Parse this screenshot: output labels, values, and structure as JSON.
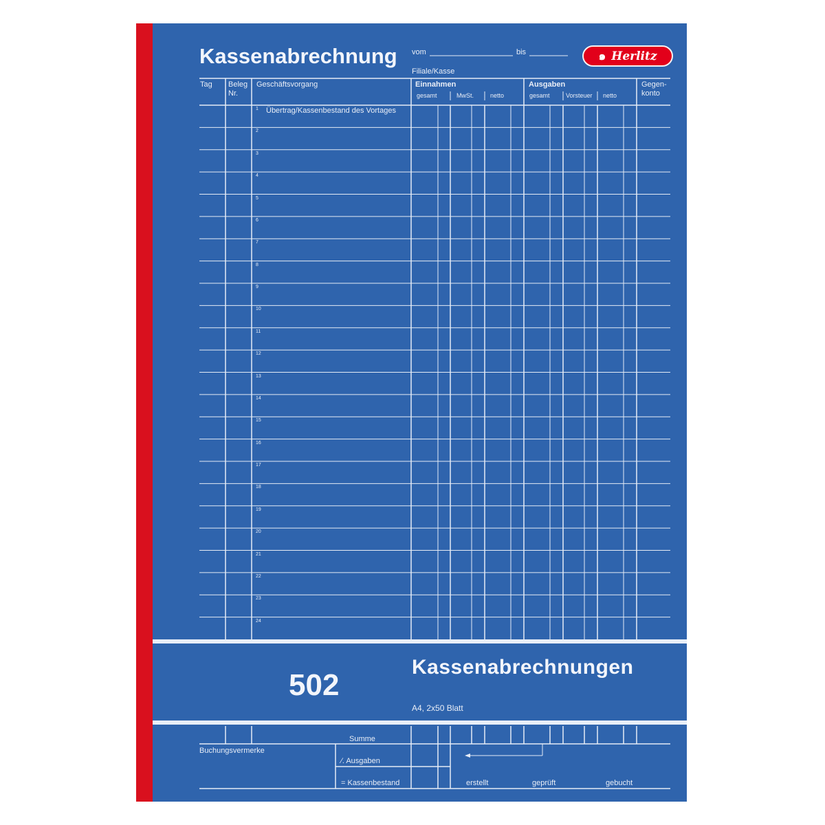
{
  "header": {
    "title": "Kassenabrechnung",
    "from_label": "vom",
    "to_label": "bis",
    "branch_label": "Filiale/Kasse",
    "brand": "Herlitz"
  },
  "table": {
    "col_tag": "Tag",
    "col_beleg": "Beleg",
    "col_beleg_nr": "Nr.",
    "col_vorgang": "Geschäftsvorgang",
    "einnahmen": "Einnahmen",
    "ausgaben": "Ausgaben",
    "gegen1": "Gegen-",
    "gegen2": "konto",
    "sub": {
      "gesamt": "gesamt",
      "mwst": "MwSt.",
      "netto": "netto",
      "gesamt2": "gesamt",
      "vorsteuer": "Vorsteuer",
      "netto2": "netto"
    },
    "first_row_text": "Übertrag/Kassenbestand des Vortages",
    "row_numbers": [
      "1",
      "2",
      "3",
      "4",
      "5",
      "6",
      "7",
      "8",
      "9",
      "10",
      "11",
      "12",
      "13",
      "14",
      "15",
      "16",
      "17",
      "18",
      "19",
      "20",
      "21",
      "22",
      "23",
      "24"
    ]
  },
  "band": {
    "number": "502",
    "product": "Kassenabrechnungen",
    "spec": "A4, 2x50 Blatt"
  },
  "footer": {
    "summe": "Summe",
    "buchungsvermerke": "Buchungsvermerke",
    "ausgaben": "∕. Ausgaben",
    "kassenbestand": "= Kassenbestand",
    "erstellt": "erstellt",
    "geprueft": "geprüft",
    "gebucht": "gebucht"
  },
  "colors": {
    "cover": "#2f64ad",
    "spine": "#d9101e",
    "logo": "#e2001a"
  }
}
